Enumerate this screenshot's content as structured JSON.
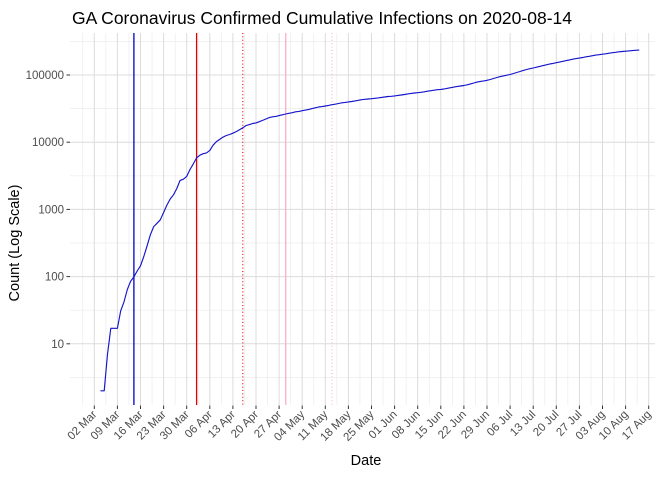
{
  "chart_data": {
    "type": "line",
    "title": "GA Coronavirus Confirmed Cumulative Infections on 2020-08-14",
    "xlabel": "Date",
    "ylabel": "Count (Log Scale)",
    "y_scale": "log10",
    "grid": true,
    "legend": false,
    "y_ticks": [
      {
        "value": 10,
        "label": "10"
      },
      {
        "value": 100,
        "label": "100"
      },
      {
        "value": 1000,
        "label": "1000"
      },
      {
        "value": 10000,
        "label": "10000"
      },
      {
        "value": 100000,
        "label": "100000"
      }
    ],
    "x_ticks": [
      "02 Mar",
      "09 Mar",
      "16 Mar",
      "23 Mar",
      "30 Mar",
      "06 Apr",
      "13 Apr",
      "20 Apr",
      "27 Apr",
      "04 May",
      "11 May",
      "18 May",
      "25 May",
      "01 Jun",
      "08 Jun",
      "15 Jun",
      "22 Jun",
      "29 Jun",
      "06 Jul",
      "13 Jul",
      "20 Jul",
      "27 Jul",
      "03 Aug",
      "10 Aug",
      "17 Aug"
    ],
    "x_tick_start_date": "2020-03-02",
    "x_tick_interval_days": 7,
    "vlines": [
      {
        "date": "2020-03-14",
        "style": "solid",
        "color_key": "vline_blue",
        "name": "event-line-blue-solid"
      },
      {
        "date": "2020-04-02",
        "style": "solid",
        "color_key": "vline_red",
        "name": "event-line-red-solid"
      },
      {
        "date": "2020-04-16",
        "style": "dotted",
        "color_key": "vline_red",
        "name": "event-line-red-dotted"
      },
      {
        "date": "2020-04-29",
        "style": "solid",
        "color_key": "vline_pink",
        "name": "event-line-pink-solid"
      },
      {
        "date": "2020-05-13",
        "style": "dotted",
        "color_key": "vline_pink",
        "name": "event-line-pink-dotted"
      }
    ],
    "series": [
      {
        "name": "GA confirmed cumulative infections",
        "color": "#1414CC",
        "start_date": "2020-03-04",
        "values": [
          2,
          2,
          7,
          17,
          17,
          17,
          31,
          42,
          64,
          85,
          99,
          121,
          145,
          199,
          287,
          420,
          555,
          621,
          700,
          900,
          1160,
          1430,
          1650,
          2050,
          2700,
          2810,
          3100,
          3930,
          4750,
          5830,
          6400,
          6740,
          6920,
          7560,
          9030,
          10200,
          11000,
          11900,
          12600,
          13000,
          13600,
          14400,
          15300,
          16400,
          17700,
          18300,
          18950,
          19400,
          20200,
          21100,
          22150,
          23200,
          23900,
          24225,
          24850,
          25600,
          26300,
          26900,
          27500,
          28350,
          28700,
          29400,
          30050,
          30800,
          31650,
          32500,
          33350,
          33900,
          34600,
          35300,
          36100,
          36800,
          37700,
          38600,
          39100,
          39800,
          40400,
          41200,
          42000,
          42850,
          43450,
          43950,
          44400,
          44950,
          45650,
          46350,
          47100,
          47900,
          48200,
          48900,
          49650,
          50450,
          51300,
          52250,
          53250,
          53900,
          54500,
          55300,
          56300,
          57350,
          58450,
          59500,
          60350,
          61150,
          62000,
          63300,
          64700,
          66000,
          67700,
          68600,
          69700,
          71450,
          73750,
          76000,
          78350,
          80350,
          81700,
          83500,
          85800,
          88600,
          91700,
          94800,
          97100,
          99300,
          101650,
          105100,
          108850,
          112650,
          116900,
          120650,
          123950,
          127000,
          130600,
          134250,
          138050,
          141700,
          145600,
          148900,
          152300,
          155650,
          159650,
          163850,
          168050,
          172000,
          175150,
          178300,
          182250,
          186350,
          190000,
          194000,
          197500,
          200600,
          204000,
          206900,
          211000,
          214600,
          218000,
          221550,
          224000,
          226150,
          228350,
          230600,
          232900,
          235000
        ]
      }
    ],
    "colors": {
      "series": "#1414CC",
      "vline_blue": "#0000CC",
      "vline_red": "#E00000",
      "vline_pink": "#FFAEC0",
      "grid_major": "#DCDCDC",
      "grid_minor": "#EBEBEB",
      "tick_text": "#4D4D4D",
      "tick_mark": "#333333"
    }
  }
}
